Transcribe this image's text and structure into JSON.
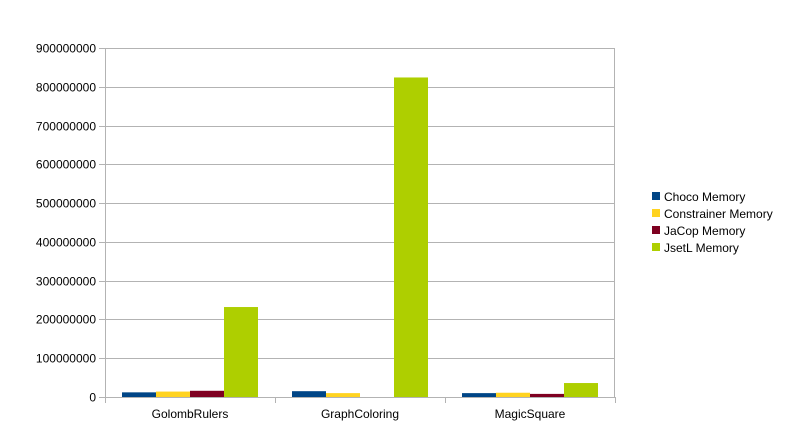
{
  "chart_data": {
    "type": "bar",
    "categories": [
      "GolombRulers",
      "GraphColoring",
      "MagicSquare"
    ],
    "series": [
      {
        "name": "Choco Memory",
        "color": "#004586",
        "values": [
          12000000,
          15000000,
          10000000
        ]
      },
      {
        "name": "Constrainer Memory",
        "color": "#ffd320",
        "values": [
          14000000,
          10000000,
          11000000
        ]
      },
      {
        "name": "JaCop Memory",
        "color": "#7e0021",
        "values": [
          16000000,
          0,
          8000000
        ]
      },
      {
        "name": "JsetL Memory",
        "color": "#aecf00",
        "values": [
          232000000,
          824000000,
          36000000
        ]
      }
    ],
    "ylim": [
      0,
      900000000
    ],
    "yticks": [
      0,
      100000000,
      200000000,
      300000000,
      400000000,
      500000000,
      600000000,
      700000000,
      800000000,
      900000000
    ],
    "ytick_labels": [
      "0",
      "100000000",
      "200000000",
      "300000000",
      "400000000",
      "500000000",
      "600000000",
      "700000000",
      "800000000",
      "900000000"
    ],
    "grid": true,
    "legend_position": "right"
  }
}
